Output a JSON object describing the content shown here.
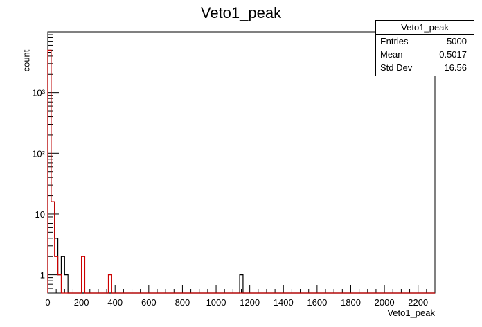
{
  "chart_data": {
    "type": "bar",
    "title": "Veto1_peak",
    "xlabel": "Veto1_peak",
    "ylabel": "count",
    "xlim": [
      0,
      2300
    ],
    "ylim": [
      0.5,
      10000
    ],
    "yscale": "log",
    "bin_width": 20,
    "x_ticks": [
      0,
      200,
      400,
      600,
      800,
      1000,
      1200,
      1400,
      1600,
      1800,
      2000,
      2200
    ],
    "y_ticks": [
      {
        "value": 1,
        "label": "1"
      },
      {
        "value": 10,
        "label": "10"
      },
      {
        "value": 100,
        "label": "10²"
      },
      {
        "value": 1000,
        "label": "10³"
      }
    ],
    "grid": false,
    "series": [
      {
        "color": "#000000",
        "bins": [
          {
            "x": 0,
            "count": 4600
          },
          {
            "x": 20,
            "count": 16
          },
          {
            "x": 40,
            "count": 4
          },
          {
            "x": 60,
            "count": 1
          },
          {
            "x": 80,
            "count": 2
          },
          {
            "x": 100,
            "count": 1
          },
          {
            "x": 1140,
            "count": 1
          }
        ]
      },
      {
        "color": "#cc0000",
        "bins": [
          {
            "x": 0,
            "count": 5000
          },
          {
            "x": 20,
            "count": 16
          },
          {
            "x": 40,
            "count": 2
          },
          {
            "x": 60,
            "count": 1
          },
          {
            "x": 200,
            "count": 2
          },
          {
            "x": 360,
            "count": 1
          }
        ]
      }
    ]
  },
  "stats": {
    "name": "Veto1_peak",
    "rows": [
      {
        "key": "Entries",
        "value": "5000"
      },
      {
        "key": "Mean",
        "value": "0.5017"
      },
      {
        "key": "Std Dev",
        "value": "16.56"
      }
    ]
  }
}
